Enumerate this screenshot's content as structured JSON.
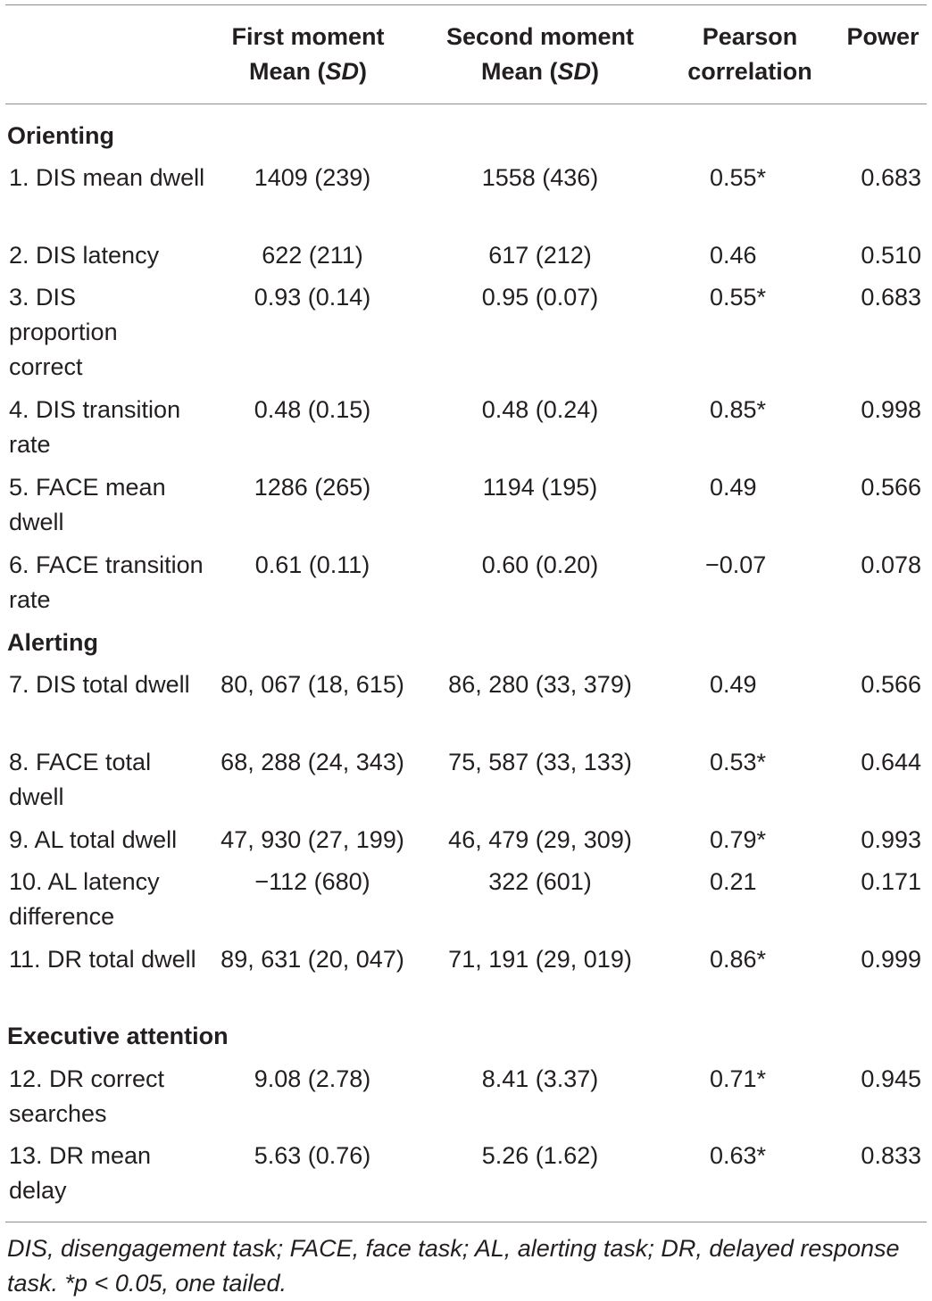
{
  "header": {
    "col1_line1": "First moment",
    "col1_line2_prefix": "Mean (",
    "col1_line2_sd": "SD",
    "col1_line2_suffix": ")",
    "col2_line1": "Second moment",
    "col2_line2_prefix": "Mean (",
    "col2_line2_sd": "SD",
    "col2_line2_suffix": ")",
    "col3_line1": "Pearson",
    "col3_line2": "correlation",
    "col4_line1": "Power"
  },
  "sections": [
    {
      "title": "Orienting"
    },
    {
      "title": "Alerting"
    },
    {
      "title": "Executive attention"
    }
  ],
  "rows": [
    {
      "label": "1. DIS mean dwell",
      "first": "1409 (239)",
      "second": "1558 (436)",
      "r": "0.55*",
      "power": "0.683"
    },
    {
      "label": "2. DIS latency",
      "first": "622 (211)",
      "second": "617 (212)",
      "r": "0.46",
      "power": "0.510"
    },
    {
      "label": "3. DIS proportion correct",
      "first": "0.93 (0.14)",
      "second": "0.95 (0.07)",
      "r": "0.55*",
      "power": "0.683"
    },
    {
      "label": "4. DIS transition rate",
      "first": "0.48 (0.15)",
      "second": "0.48 (0.24)",
      "r": "0.85*",
      "power": "0.998"
    },
    {
      "label": "5. FACE mean dwell",
      "first": "1286 (265)",
      "second": "1194 (195)",
      "r": "0.49",
      "power": "0.566"
    },
    {
      "label": "6. FACE transition rate",
      "first": "0.61 (0.11)",
      "second": "0.60 (0.20)",
      "r": "−0.07",
      "power": "0.078"
    },
    {
      "label": "7. DIS total dwell",
      "first": "80, 067 (18, 615)",
      "second": "86, 280 (33, 379)",
      "r": "0.49",
      "power": "0.566"
    },
    {
      "label": "8. FACE total dwell",
      "first": "68, 288 (24, 343)",
      "second": "75, 587 (33, 133)",
      "r": "0.53*",
      "power": "0.644"
    },
    {
      "label": "9. AL total dwell",
      "first": "47, 930 (27, 199)",
      "second": "46, 479 (29, 309)",
      "r": "0.79*",
      "power": "0.993"
    },
    {
      "label": "10. AL latency difference",
      "first": "−112 (680)",
      "second": "322 (601)",
      "r": "0.21",
      "power": "0.171"
    },
    {
      "label": "11. DR total dwell",
      "first": "89, 631 (20, 047)",
      "second": "71, 191 (29, 019)",
      "r": "0.86*",
      "power": "0.999"
    },
    {
      "label": "12. DR correct searches",
      "first": "9.08 (2.78)",
      "second": "8.41 (3.37)",
      "r": "0.71*",
      "power": "0.945"
    },
    {
      "label": "13. DR mean delay",
      "first": "5.63 (0.76)",
      "second": "5.26 (1.62)",
      "r": "0.63*",
      "power": "0.833"
    }
  ],
  "footnote": "DIS, disengagement task; FACE, face task; AL, alerting task; DR, delayed response task. *p < 0.05, one tailed."
}
